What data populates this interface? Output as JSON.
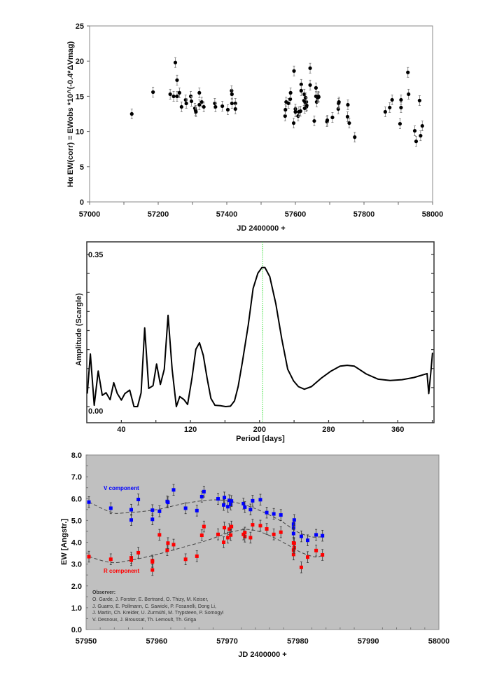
{
  "chart_data": [
    {
      "type": "scatter",
      "xlabel": "JD 2400000 +",
      "ylabel": "Hα EW(corr) =  EWobs *10^(-0.4*ΔVmag)",
      "xlim": [
        57000,
        58000
      ],
      "ylim": [
        0,
        25
      ],
      "xticks": [
        "57000",
        "57200",
        "57400",
        "57600",
        "57800",
        "58000"
      ],
      "yticks": [
        "0",
        "5",
        "10",
        "15",
        "20",
        "25"
      ],
      "grid": false,
      "error_bars": true,
      "marker_color": "#000000",
      "points": [
        [
          57123,
          12.5
        ],
        [
          57185,
          15.6
        ],
        [
          57235,
          15.3
        ],
        [
          57245,
          15.0
        ],
        [
          57250,
          19.8
        ],
        [
          57255,
          17.3
        ],
        [
          57255,
          15.0
        ],
        [
          57262,
          15.5
        ],
        [
          57268,
          13.5
        ],
        [
          57280,
          14.5
        ],
        [
          57282,
          14.0
        ],
        [
          57295,
          15.0
        ],
        [
          57297,
          14.3
        ],
        [
          57307,
          13.3
        ],
        [
          57309,
          13.0
        ],
        [
          57310,
          12.8
        ],
        [
          57320,
          15.5
        ],
        [
          57320,
          13.8
        ],
        [
          57327,
          14.2
        ],
        [
          57333,
          13.5
        ],
        [
          57365,
          14.0
        ],
        [
          57367,
          13.5
        ],
        [
          57387,
          13.6
        ],
        [
          57403,
          13.1
        ],
        [
          57414,
          15.8
        ],
        [
          57415,
          15.3
        ],
        [
          57415,
          14.0
        ],
        [
          57425,
          14.0
        ],
        [
          57425,
          13.2
        ],
        [
          57570,
          12.2
        ],
        [
          57571,
          13.1
        ],
        [
          57573,
          14.2
        ],
        [
          57580,
          14.0
        ],
        [
          57585,
          14.6
        ],
        [
          57586,
          15.5
        ],
        [
          57595,
          11.2
        ],
        [
          57596,
          18.6
        ],
        [
          57600,
          13.2
        ],
        [
          57600,
          12.8
        ],
        [
          57608,
          12.2
        ],
        [
          57610,
          12.8
        ],
        [
          57615,
          12.9
        ],
        [
          57617,
          16.7
        ],
        [
          57617,
          15.8
        ],
        [
          57625,
          14.4
        ],
        [
          57626,
          15.3
        ],
        [
          57627,
          13.3
        ],
        [
          57628,
          14.2
        ],
        [
          57630,
          14.8
        ],
        [
          57632,
          13.5
        ],
        [
          57632,
          14.2
        ],
        [
          57633,
          13.7
        ],
        [
          57643,
          19.0
        ],
        [
          57643,
          16.6
        ],
        [
          57655,
          11.5
        ],
        [
          57660,
          16.2
        ],
        [
          57660,
          15.0
        ],
        [
          57662,
          14.2
        ],
        [
          57665,
          14.8
        ],
        [
          57667,
          15.0
        ],
        [
          57668,
          14.9
        ],
        [
          57692,
          11.4
        ],
        [
          57693,
          11.6
        ],
        [
          57708,
          12.0
        ],
        [
          57725,
          13.2
        ],
        [
          57726,
          14.0
        ],
        [
          57727,
          14.2
        ],
        [
          57752,
          12.1
        ],
        [
          57753,
          13.8
        ],
        [
          57757,
          11.2
        ],
        [
          57773,
          9.2
        ],
        [
          57862,
          12.8
        ],
        [
          57875,
          13.4
        ],
        [
          57882,
          14.5
        ],
        [
          57905,
          11.1
        ],
        [
          57908,
          14.5
        ],
        [
          57908,
          13.4
        ],
        [
          57928,
          18.4
        ],
        [
          57930,
          15.3
        ],
        [
          57948,
          10.1
        ],
        [
          57952,
          8.6
        ],
        [
          57962,
          14.4
        ],
        [
          57965,
          9.4
        ],
        [
          57970,
          10.8
        ]
      ],
      "error": 0.7
    },
    {
      "type": "line",
      "xlabel": "Period [days]",
      "ylabel": "Amplitude (Scargle)",
      "xlim": [
        0,
        402
      ],
      "ylim": [
        0,
        0.35
      ],
      "xticks": [
        "40",
        "120",
        "200",
        "280",
        "360"
      ],
      "yticks": [
        "0.00",
        "0.35"
      ],
      "line_color": "#000000",
      "marker_line": {
        "period": 203.6,
        "color": "#33dd33",
        "style": "dotted"
      },
      "x": [
        0.6,
        4.1,
        8.6,
        13.2,
        17.9,
        22.3,
        27,
        31.2,
        35.3,
        40,
        44.1,
        49.7,
        54.6,
        58.8,
        62.9,
        67,
        71.7,
        76.7,
        80.8,
        85.2,
        89.7,
        94.1,
        98.8,
        103.7,
        107.6,
        112.6,
        116.7,
        121.7,
        126.3,
        130.5,
        134.9,
        139.3,
        143.7,
        148.4,
        155.3,
        160.8,
        166.3,
        171,
        175.2,
        180.1,
        187,
        192.6,
        198.1,
        202.8,
        206.3,
        211.9,
        218.8,
        225.7,
        232.6,
        239.4,
        245,
        251.9,
        260.1,
        271.2,
        282.2,
        293.3,
        301.5,
        309.8,
        323.6,
        337.4,
        351.2,
        365,
        378.8,
        394,
        395.9,
        398.1,
        400.3
      ],
      "y": [
        0.03,
        0.121,
        0.003,
        0.082,
        0.026,
        0.032,
        0.016,
        0.055,
        0.03,
        0.015,
        0.03,
        0.038,
        0,
        0,
        0.032,
        0.181,
        0.042,
        0.048,
        0.098,
        0.051,
        0.086,
        0.21,
        0.086,
        0,
        0.023,
        0.016,
        0.005,
        0.065,
        0.132,
        0.147,
        0.118,
        0.065,
        0.019,
        0.003,
        0.002,
        0,
        0.001,
        0.013,
        0.046,
        0.102,
        0.188,
        0.272,
        0.307,
        0.32,
        0.32,
        0.299,
        0.237,
        0.156,
        0.086,
        0.059,
        0.046,
        0.04,
        0.046,
        0.065,
        0.081,
        0.093,
        0.095,
        0.093,
        0.075,
        0.063,
        0.06,
        0.062,
        0.067,
        0.076,
        0.03,
        0.074,
        0.124
      ]
    },
    {
      "type": "scatter",
      "xlabel": "JD 2400000 +",
      "ylabel": "EW [Angstr.]",
      "xlim": [
        57950,
        58000
      ],
      "ylim": [
        0,
        8
      ],
      "xticks": [
        "57950",
        "57960",
        "57970",
        "57980",
        "57990",
        "58000"
      ],
      "yticks": [
        "0.0",
        "1.0",
        "2.0",
        "3.0",
        "4.0",
        "5.0",
        "6.0",
        "7.0",
        "8.0"
      ],
      "background": "#c0c0c0",
      "error_bars": true,
      "error": 0.25,
      "series": [
        {
          "name": "V component",
          "color": "#0000ff",
          "points": [
            [
              57950.4,
              5.84
            ],
            [
              57953.5,
              5.56
            ],
            [
              57956.4,
              5.49
            ],
            [
              57956.4,
              5.02
            ],
            [
              57957.4,
              5.96
            ],
            [
              57959.4,
              5.47
            ],
            [
              57959.4,
              5.05
            ],
            [
              57960.4,
              5.42
            ],
            [
              57961.5,
              5.87
            ],
            [
              57961.6,
              5.83
            ],
            [
              57962.4,
              6.4
            ],
            [
              57964.1,
              5.56
            ],
            [
              57965.7,
              5.45
            ],
            [
              57966.4,
              6.09
            ],
            [
              57966.7,
              6.32
            ],
            [
              57968.7,
              5.99
            ],
            [
              57969.5,
              5.71
            ],
            [
              57969.6,
              6.05
            ],
            [
              57970.1,
              5.63
            ],
            [
              57970.3,
              5.92
            ],
            [
              57970.5,
              5.73
            ],
            [
              57970.6,
              5.89
            ],
            [
              57972.3,
              5.77
            ],
            [
              57972.5,
              5.61
            ],
            [
              57973.3,
              5.5
            ],
            [
              57973.6,
              5.9
            ],
            [
              57974.7,
              5.95
            ],
            [
              57975.6,
              5.36
            ],
            [
              57976.6,
              5.3
            ],
            [
              57977.6,
              5.25
            ],
            [
              57979.4,
              4.66
            ],
            [
              57979.4,
              4.83
            ],
            [
              57979.4,
              4.4
            ],
            [
              57979.5,
              5.02
            ],
            [
              57980.5,
              4.27
            ],
            [
              57981.4,
              4.09
            ],
            [
              57982.6,
              4.34
            ],
            [
              57983.5,
              4.3
            ]
          ],
          "fit": [
            [
              57950.4,
              5.84
            ],
            [
              57953.5,
              5.38
            ],
            [
              57955.3,
              5.34
            ],
            [
              57959.9,
              5.49
            ],
            [
              57963.5,
              5.75
            ],
            [
              57967,
              5.92
            ],
            [
              57969.5,
              5.92
            ],
            [
              57972.3,
              5.73
            ],
            [
              57974.8,
              5.43
            ],
            [
              57977.7,
              4.96
            ],
            [
              57979.8,
              4.5
            ],
            [
              57981.9,
              4.25
            ],
            [
              57983.5,
              4.25
            ]
          ]
        },
        {
          "name": "R component",
          "color": "#ff0000",
          "points": [
            [
              57950.4,
              3.34
            ],
            [
              57953.5,
              3.22
            ],
            [
              57956.4,
              3.29
            ],
            [
              57956.4,
              3.18
            ],
            [
              57957.4,
              3.52
            ],
            [
              57959.4,
              3.16
            ],
            [
              57959.4,
              3.1
            ],
            [
              57959.4,
              2.73
            ],
            [
              57960.4,
              4.34
            ],
            [
              57961.5,
              3.64
            ],
            [
              57961.6,
              3.96
            ],
            [
              57962.4,
              3.89
            ],
            [
              57964.1,
              3.22
            ],
            [
              57965.7,
              3.36
            ],
            [
              57966.4,
              4.32
            ],
            [
              57966.7,
              4.72
            ],
            [
              57968.7,
              4.36
            ],
            [
              57969.5,
              4.0
            ],
            [
              57969.6,
              4.67
            ],
            [
              57970.1,
              4.21
            ],
            [
              57970.3,
              4.6
            ],
            [
              57970.5,
              4.33
            ],
            [
              57970.6,
              4.72
            ],
            [
              57972.3,
              4.36
            ],
            [
              57972.5,
              4.26
            ],
            [
              57972.5,
              4.44
            ],
            [
              57973.3,
              4.21
            ],
            [
              57973.6,
              4.8
            ],
            [
              57974.7,
              4.76
            ],
            [
              57975.6,
              4.61
            ],
            [
              57976.6,
              4.36
            ],
            [
              57977.6,
              4.46
            ],
            [
              57979.4,
              3.64
            ],
            [
              57979.4,
              3.44
            ],
            [
              57979.4,
              3.97
            ],
            [
              57979.5,
              3.75
            ],
            [
              57979.5,
              3.95
            ],
            [
              57980.5,
              2.85
            ],
            [
              57981.4,
              3.32
            ],
            [
              57982.6,
              3.62
            ],
            [
              57983.5,
              3.42
            ]
          ],
          "fit": [
            [
              57950.4,
              3.34
            ],
            [
              57953.6,
              3.07
            ],
            [
              57956.4,
              3.18
            ],
            [
              57959.9,
              3.43
            ],
            [
              57963.5,
              3.75
            ],
            [
              57967,
              4.07
            ],
            [
              57969.8,
              4.39
            ],
            [
              57972.3,
              4.58
            ],
            [
              57974.1,
              4.53
            ],
            [
              57976.2,
              4.28
            ],
            [
              57978.4,
              3.91
            ],
            [
              57980.5,
              3.53
            ],
            [
              57982.6,
              3.32
            ],
            [
              57983.5,
              3.43
            ]
          ]
        }
      ],
      "observer": {
        "heading": "Observer:",
        "lines": [
          "O. Garde, J. Forster, E. Bertrand, O. Thizy, M. Keiser,",
          "J. Guarro, E. Pollmann, C. Sawicki, P. Fosanelli, Dong Li,",
          "J. Martin, Ch. Kreider, U. Zurmühl, M. Trypsteen, P. Somogyi",
          "V. Desnoux, J. Broussat, Th. Lemoult, Th. Griga"
        ]
      }
    }
  ]
}
